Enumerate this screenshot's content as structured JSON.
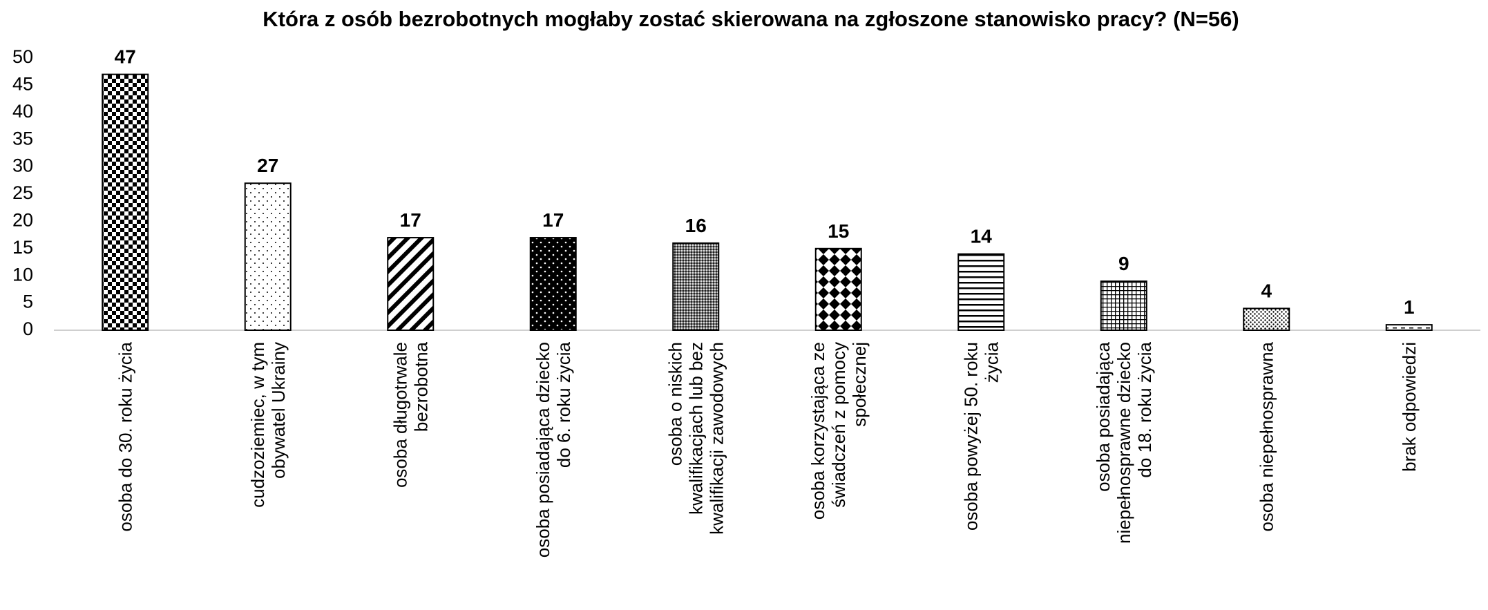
{
  "chart_data": {
    "type": "bar",
    "title": "Która z osób bezrobotnych mogłaby zostać skierowana na zgłoszone stanowisko pracy? (N=56)",
    "categories": [
      "osoba do 30. roku życia",
      "cudzoziemiec, w tym obywatel Ukrainy",
      "osoba długotrwale bezrobotna",
      "osoba posiadająca dziecko do 6. roku życia",
      "osoba o niskich kwalifikacjach lub bez kwalifikacji zawodowych",
      "osoba korzystająca ze świadczeń z pomocy społecznej",
      "osoba powyżej 50. roku życia",
      "osoba posiadająca niepełnosprawne dziecko do 18. roku życia",
      "osoba niepełnosprawna",
      "brak odpowiedzi"
    ],
    "values": [
      47,
      27,
      17,
      17,
      16,
      15,
      14,
      9,
      4,
      1
    ],
    "color": "#000000",
    "ylim": [
      0,
      50
    ],
    "yticks": [
      0,
      5,
      10,
      15,
      20,
      25,
      30,
      35,
      40,
      45,
      50
    ],
    "grid": false
  }
}
